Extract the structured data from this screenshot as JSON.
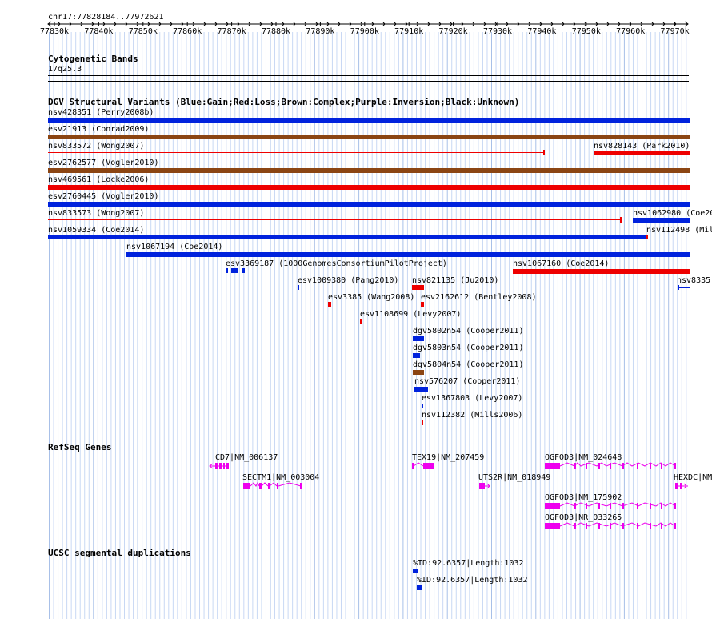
{
  "ruler": {
    "coords": "chr17:77828184..77972621",
    "ticks": [
      "77830k",
      "77840k",
      "77850k",
      "77860k",
      "77870k",
      "77880k",
      "77890k",
      "77900k",
      "77910k",
      "77920k",
      "77930k",
      "77940k",
      "77950k",
      "77960k",
      "77970k"
    ]
  },
  "tracks": {
    "cyto_title": "Cytogenetic Bands",
    "cyto_band": "17q25.3",
    "dgv_title": "DGV Structural Variants (Blue:Gain;Red:Loss;Brown:Complex;Purple:Inversion;Black:Unknown)",
    "refseq_title": "RefSeq Genes",
    "segdup_title": "UCSC segmental duplications"
  },
  "colors": {
    "gain": "#0022dd",
    "loss": "#ee0000",
    "complex": "#8b4513",
    "gene": "#ee00ee"
  },
  "variants": [
    {
      "label": "nsv428351 (Perry2008b)",
      "type": "gain"
    },
    {
      "label": "esv21913 (Conrad2009)",
      "type": "complex"
    },
    {
      "label": "nsv833572 (Wong2007)",
      "type": "loss",
      "style": "line"
    },
    {
      "label": "nsv828143 (Park2010)",
      "type": "loss"
    },
    {
      "label": "esv2762577 (Vogler2010)",
      "type": "complex"
    },
    {
      "label": "nsv469561 (Locke2006)",
      "type": "loss"
    },
    {
      "label": "esv2760445 (Vogler2010)",
      "type": "gain"
    },
    {
      "label": "nsv833573 (Wong2007)",
      "type": "loss",
      "style": "line"
    },
    {
      "label": "nsv1062980 (Coe20",
      "type": "gain"
    },
    {
      "label": "nsv1059334 (Coe2014)",
      "type": "gain"
    },
    {
      "label": "nsv112498 (Mill",
      "type": "loss"
    },
    {
      "label": "nsv1067194 (Coe2014)",
      "type": "gain"
    },
    {
      "label": "esv3369187 (1000GenomesConsortiumPilotProject)",
      "type": "gain"
    },
    {
      "label": "nsv1067160 (Coe2014)",
      "type": "loss"
    },
    {
      "label": "esv1009380 (Pang2010)",
      "type": "gain"
    },
    {
      "label": "nsv821135 (Ju2010)",
      "type": "loss"
    },
    {
      "label": "nsv8335",
      "type": "gain"
    },
    {
      "label": "esv3385 (Wang2008)",
      "type": "loss"
    },
    {
      "label": "esv2162612 (Bentley2008)",
      "type": "loss"
    },
    {
      "label": "esv1108699 (Levy2007)",
      "type": "loss"
    },
    {
      "label": "dgv5802n54 (Cooper2011)",
      "type": "gain"
    },
    {
      "label": "dgv5803n54 (Cooper2011)",
      "type": "gain"
    },
    {
      "label": "dgv5804n54 (Cooper2011)",
      "type": "complex"
    },
    {
      "label": "nsv576207 (Cooper2011)",
      "type": "gain"
    },
    {
      "label": "esv1367803 (Levy2007)",
      "type": "gain"
    },
    {
      "label": "nsv112382 (Mills2006)",
      "type": "loss"
    }
  ],
  "genes": [
    {
      "label": "CD7|NM_006137"
    },
    {
      "label": "SECTM1|NM_003004"
    },
    {
      "label": "TEX19|NM_207459"
    },
    {
      "label": "UTS2R|NM_018949"
    },
    {
      "label": "OGFOD3|NM_024648"
    },
    {
      "label": "HEXDC|NM"
    },
    {
      "label": "OGFOD3|NM_175902"
    },
    {
      "label": "OGFOD3|NR_033265"
    }
  ],
  "segdups": [
    {
      "label": "%ID:92.6357|Length:1032"
    },
    {
      "label": "%ID:92.6357|Length:1032"
    }
  ]
}
